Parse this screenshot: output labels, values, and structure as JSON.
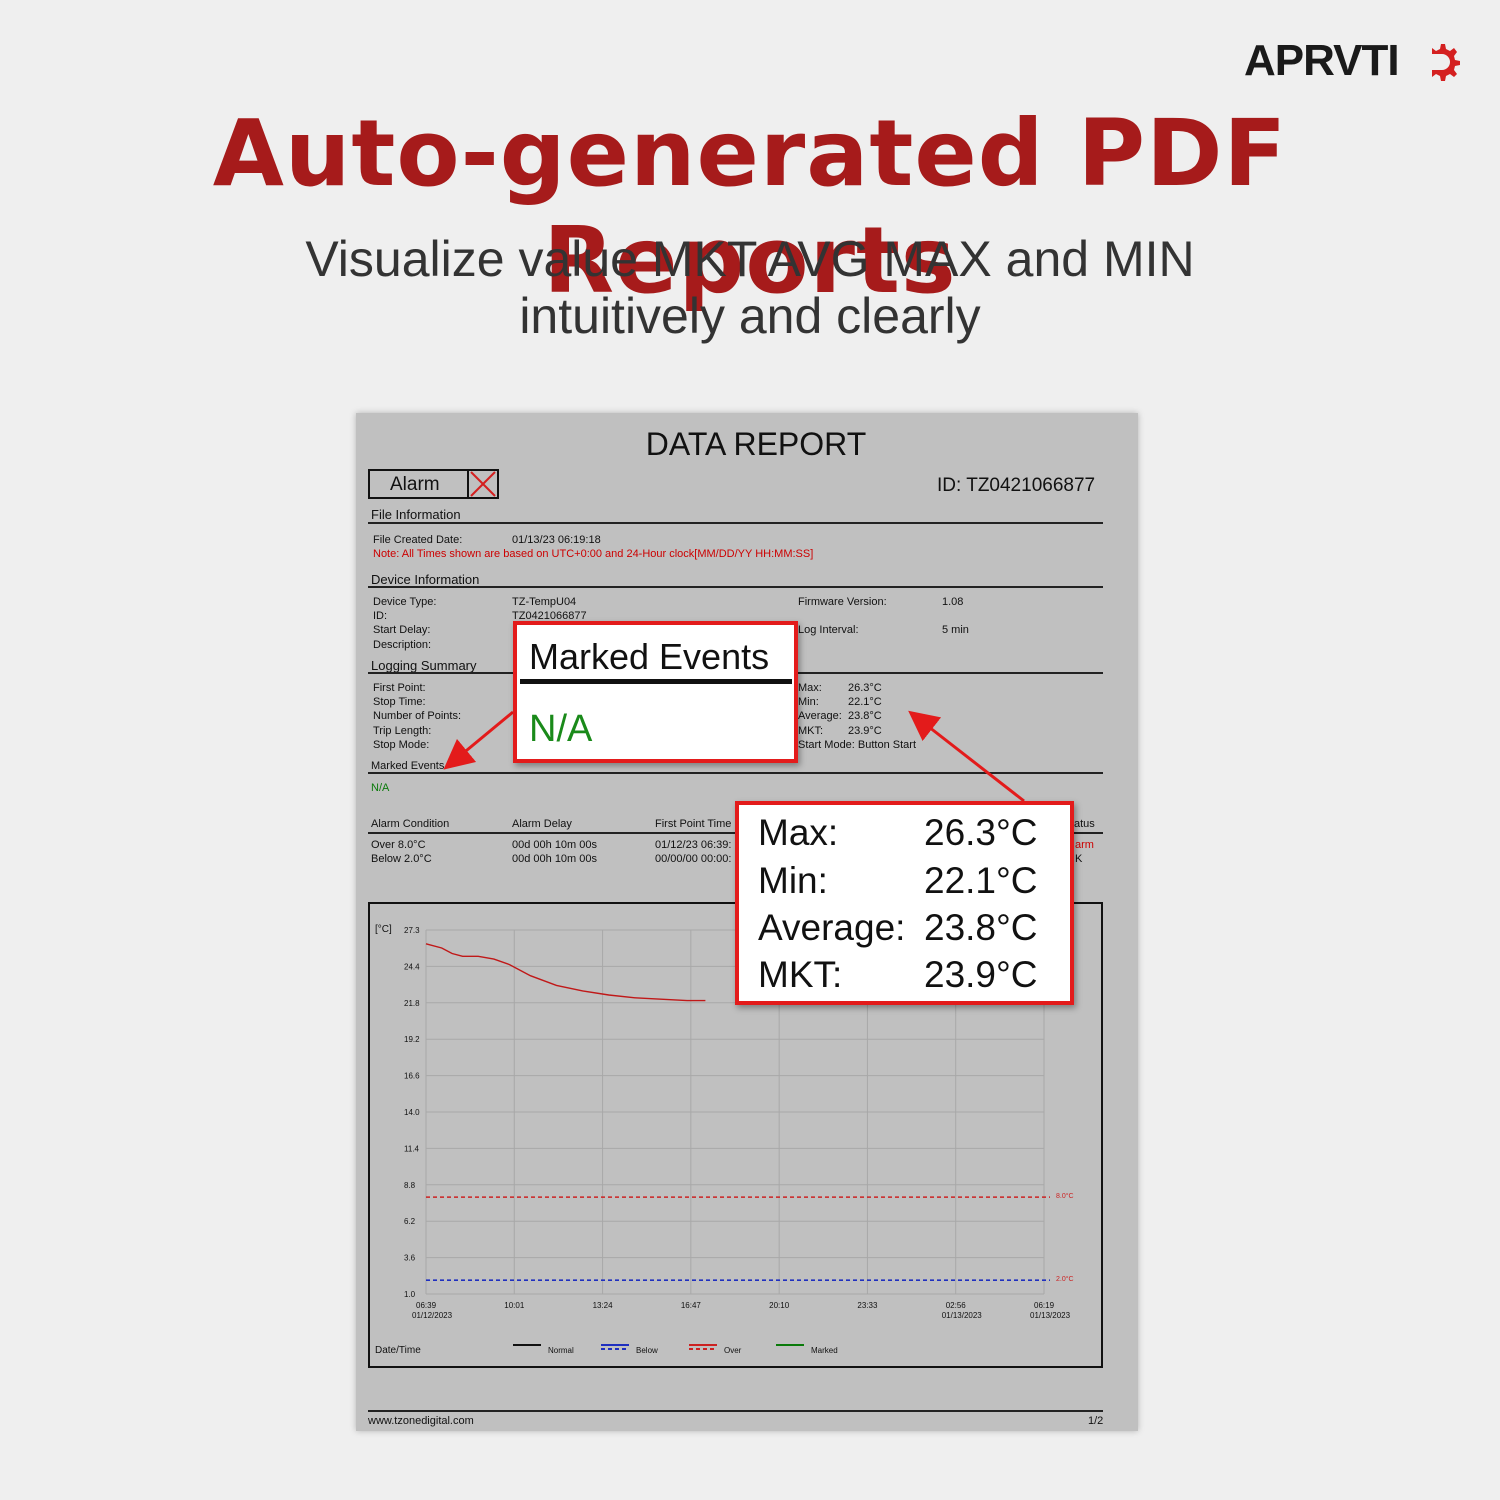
{
  "brand": {
    "name": "APRVTI"
  },
  "headline": "Auto-generated PDF Reports",
  "subtitle": {
    "line1": "Visualize value MKT AVG MAX and MIN",
    "line2": "intuitively and clearly"
  },
  "report": {
    "title": "DATA REPORT",
    "alarm_label": "Alarm",
    "id": "ID: TZ0421066877",
    "file_info": {
      "heading": "File Information",
      "created_label": "File Created Date:",
      "created_value": "01/13/23 06:19:18",
      "note": "Note: All Times shown are  based on UTC+0:00 and 24-Hour clock[MM/DD/YY HH:MM:SS]"
    },
    "device_info": {
      "heading": "Device Information",
      "device_type_label": "Device Type:",
      "device_type_value": "TZ-TempU04",
      "id_label": "ID:",
      "id_value": "TZ0421066877",
      "start_delay_label": "Start Delay:",
      "description_label": "Description:",
      "firmware_label": "Firmware Version:",
      "firmware_value": "1.08",
      "log_interval_label": "Log Interval:",
      "log_interval_value": "5 min"
    },
    "logging_summary": {
      "heading": "Logging Summary",
      "first_point": "First Point:",
      "stop_time": "Stop Time:",
      "num_points": "Number of Points:",
      "trip_length": "Trip Length:",
      "stop_mode": "Stop Mode:",
      "max_label": "Max:",
      "max_value": "26.3°C",
      "min_label": "Min:",
      "min_value": "22.1°C",
      "avg_label": "Average:",
      "avg_value": "23.8°C",
      "mkt_label": "MKT:",
      "mkt_value": "23.9°C",
      "start_mode": "Start Mode: Button Start"
    },
    "marked_events": {
      "heading": "Marked Events",
      "value": "N/A"
    },
    "alarm_table": {
      "headers": [
        "Alarm Condition",
        "Alarm Delay",
        "First Point Time",
        "atus"
      ],
      "rows": [
        [
          "Over 8.0°C",
          "00d 00h 10m 00s",
          "01/12/23 06:39:",
          "arm"
        ],
        [
          "Below 2.0°C",
          "00d 00h 10m 00s",
          "00/00/00 00:00:",
          "K"
        ]
      ]
    },
    "footer": {
      "url": "www.tzonedigital.com",
      "page": "1/2"
    }
  },
  "chart_data": {
    "type": "line",
    "ylabel": "[°C]",
    "xlabel": "Date/Time",
    "yticks": [
      "27.3",
      "24.4",
      "21.8",
      "19.2",
      "16.6",
      "14.0",
      "11.4",
      "8.8",
      "6.2",
      "3.6",
      "1.0"
    ],
    "ylim": [
      1.0,
      27.3
    ],
    "xticks": [
      {
        "time": "06:39",
        "date": "01/12/2023"
      },
      {
        "time": "10:01",
        "date": ""
      },
      {
        "time": "13:24",
        "date": ""
      },
      {
        "time": "16:47",
        "date": ""
      },
      {
        "time": "20:10",
        "date": ""
      },
      {
        "time": "23:33",
        "date": ""
      },
      {
        "time": "02:56",
        "date": "01/13/2023"
      },
      {
        "time": "06:19",
        "date": "01/13/2023"
      }
    ],
    "series": [
      {
        "name": "Normal",
        "hours": [
          0,
          0.6,
          1.0,
          1.4,
          2.0,
          2.6,
          3.2,
          4.0,
          5.0,
          6.0,
          7.0,
          8.0,
          9.0,
          10.0,
          10.7
        ],
        "values": [
          26.3,
          26.0,
          25.6,
          25.4,
          25.4,
          25.2,
          24.8,
          24.0,
          23.3,
          22.9,
          22.6,
          22.4,
          22.3,
          22.2,
          22.2
        ]
      }
    ],
    "thresholds": [
      {
        "name": "Over",
        "value": 8.0,
        "label": "8.0°C",
        "color": "#cc2222"
      },
      {
        "name": "Below",
        "value": 2.0,
        "label": "2.0°C",
        "color": "#1f2fbf"
      }
    ],
    "legend": [
      {
        "name": "Normal",
        "color": "#111111",
        "style": "solid"
      },
      {
        "name": "Below",
        "color": "#1f2fbf",
        "style": "dashed"
      },
      {
        "name": "Over",
        "color": "#cc2222",
        "style": "dashed"
      },
      {
        "name": "Marked",
        "color": "#0a7a0a",
        "style": "solid"
      }
    ],
    "line_color": "#c01818",
    "span_hours": 23.67,
    "grid": true
  },
  "callouts": {
    "marked": {
      "title": "Marked Events",
      "value": "N/A"
    },
    "stats": {
      "max_label": "Max:",
      "max_value": "26.3°C",
      "min_label": "Min:",
      "min_value": "22.1°C",
      "avg_label": "Average:",
      "avg_value": "23.8°C",
      "mkt_label": "MKT:",
      "mkt_value": "23.9°C"
    }
  },
  "colors": {
    "accent": "#a61b1b",
    "callout_border": "#e31b1b",
    "paper": "#c0c0c0",
    "background": "#efefef"
  }
}
